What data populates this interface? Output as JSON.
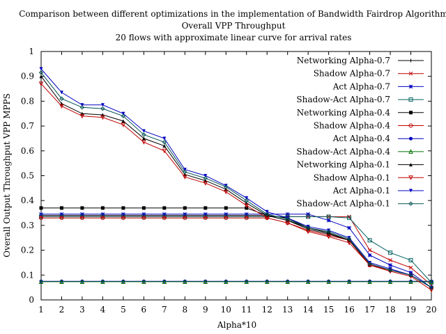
{
  "chart_data": {
    "type": "line",
    "title_lines": [
      "Comparison between different optimizations in the implementation of Bandwidth Fairdrop Algorithm",
      "Overall VPP Throughput",
      "20 flows with approximate linear curve for arrival rates"
    ],
    "xlabel": "Alpha*10",
    "ylabel": "Overall Output Throughput VPP MPPS",
    "xlim": [
      1,
      20
    ],
    "ylim": [
      0,
      1
    ],
    "xticks": [
      1,
      2,
      3,
      4,
      5,
      6,
      7,
      8,
      9,
      10,
      11,
      12,
      13,
      14,
      15,
      16,
      17,
      18,
      19,
      20
    ],
    "yticks": [
      0,
      0.1,
      0.2,
      0.3,
      0.4,
      0.5,
      0.6,
      0.7,
      0.8,
      0.9,
      1
    ],
    "x": [
      1,
      2,
      3,
      4,
      5,
      6,
      7,
      8,
      9,
      10,
      11,
      12,
      13,
      14,
      15,
      16,
      17,
      18,
      19,
      20
    ],
    "grid": false,
    "legend_position": "top-right",
    "series": [
      {
        "name": "Networking Alpha-0.7",
        "color": "#000000",
        "marker": "plus",
        "values": [
          0.34,
          0.34,
          0.34,
          0.34,
          0.34,
          0.34,
          0.34,
          0.34,
          0.34,
          0.34,
          0.34,
          0.34,
          0.33,
          0.29,
          0.27,
          0.24,
          0.14,
          0.12,
          0.1,
          0.05
        ]
      },
      {
        "name": "Shadow Alpha-0.7",
        "color": "#c00000",
        "marker": "x",
        "values": [
          0.335,
          0.335,
          0.335,
          0.335,
          0.335,
          0.335,
          0.335,
          0.335,
          0.335,
          0.335,
          0.335,
          0.335,
          0.335,
          0.335,
          0.335,
          0.335,
          0.2,
          0.16,
          0.13,
          0.06
        ]
      },
      {
        "name": "Act Alpha-0.7",
        "color": "#0000c0",
        "marker": "star",
        "values": [
          0.345,
          0.345,
          0.345,
          0.345,
          0.345,
          0.345,
          0.345,
          0.345,
          0.345,
          0.345,
          0.345,
          0.345,
          0.345,
          0.345,
          0.32,
          0.29,
          0.18,
          0.14,
          0.11,
          0.05
        ]
      },
      {
        "name": "Shadow-Act Alpha-0.7",
        "color": "#006060",
        "marker": "square",
        "values": [
          0.335,
          0.335,
          0.335,
          0.335,
          0.335,
          0.335,
          0.335,
          0.335,
          0.335,
          0.335,
          0.335,
          0.335,
          0.335,
          0.335,
          0.335,
          0.33,
          0.24,
          0.19,
          0.16,
          0.07
        ]
      },
      {
        "name": "Networking Alpha-0.4",
        "color": "#000000",
        "marker": "filled-square",
        "values": [
          0.37,
          0.37,
          0.37,
          0.37,
          0.37,
          0.37,
          0.37,
          0.37,
          0.37,
          0.37,
          0.37,
          0.34,
          0.32,
          0.29,
          0.27,
          0.24,
          0.14,
          0.12,
          0.1,
          0.05
        ]
      },
      {
        "name": "Shadow Alpha-0.4",
        "color": "#c00000",
        "marker": "circle",
        "values": [
          0.33,
          0.33,
          0.33,
          0.33,
          0.33,
          0.33,
          0.33,
          0.33,
          0.33,
          0.33,
          0.33,
          0.33,
          0.31,
          0.28,
          0.26,
          0.24,
          0.14,
          0.12,
          0.1,
          0.05
        ]
      },
      {
        "name": "Act Alpha-0.4",
        "color": "#0000c0",
        "marker": "filled-circle",
        "values": [
          0.075,
          0.075,
          0.075,
          0.075,
          0.075,
          0.075,
          0.075,
          0.075,
          0.075,
          0.075,
          0.075,
          0.075,
          0.075,
          0.075,
          0.075,
          0.075,
          0.075,
          0.075,
          0.075,
          0.075
        ]
      },
      {
        "name": "Shadow-Act Alpha-0.4",
        "color": "#007000",
        "marker": "triangle",
        "values": [
          0.073,
          0.073,
          0.073,
          0.073,
          0.073,
          0.073,
          0.073,
          0.073,
          0.073,
          0.073,
          0.073,
          0.073,
          0.073,
          0.073,
          0.073,
          0.073,
          0.073,
          0.073,
          0.073,
          0.073
        ]
      },
      {
        "name": "Networking Alpha-0.1",
        "color": "#000000",
        "marker": "filled-triangle",
        "values": [
          0.9,
          0.79,
          0.75,
          0.745,
          0.72,
          0.65,
          0.62,
          0.505,
          0.48,
          0.445,
          0.39,
          0.34,
          0.32,
          0.285,
          0.265,
          0.24,
          0.145,
          0.12,
          0.1,
          0.05
        ]
      },
      {
        "name": "Shadow Alpha-0.1",
        "color": "#c00000",
        "marker": "inverted-triangle",
        "values": [
          0.87,
          0.78,
          0.74,
          0.735,
          0.705,
          0.635,
          0.6,
          0.495,
          0.47,
          0.435,
          0.38,
          0.33,
          0.31,
          0.275,
          0.255,
          0.23,
          0.14,
          0.115,
          0.095,
          0.04
        ]
      },
      {
        "name": "Act Alpha-0.1",
        "color": "#0000c0",
        "marker": "filled-inverted-triangle",
        "values": [
          0.93,
          0.835,
          0.785,
          0.785,
          0.75,
          0.68,
          0.65,
          0.525,
          0.5,
          0.46,
          0.41,
          0.355,
          0.33,
          0.295,
          0.28,
          0.25,
          0.15,
          0.125,
          0.1,
          0.05
        ]
      },
      {
        "name": "Shadow-Act Alpha-0.1",
        "color": "#005050",
        "marker": "diamond",
        "values": [
          0.915,
          0.81,
          0.775,
          0.77,
          0.74,
          0.665,
          0.635,
          0.515,
          0.49,
          0.455,
          0.4,
          0.345,
          0.325,
          0.29,
          0.275,
          0.245,
          0.145,
          0.12,
          0.1,
          0.05
        ]
      }
    ]
  }
}
